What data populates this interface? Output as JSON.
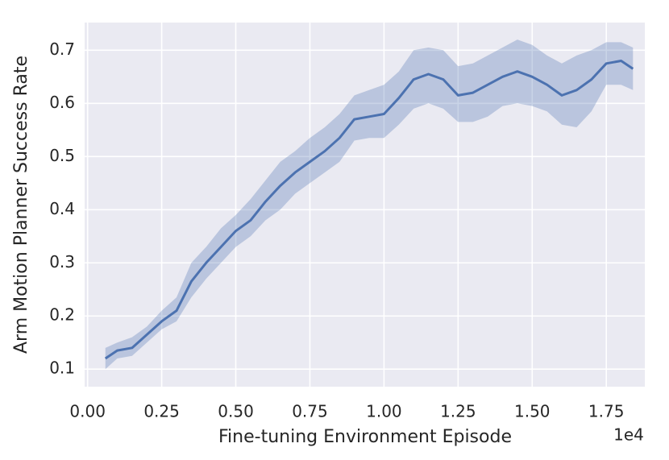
{
  "chart_data": {
    "type": "line",
    "xlabel": "Fine-tuning Environment Episode",
    "ylabel": "Arm Motion Planner Success Rate",
    "x_offset_label": "1e4",
    "x": [
      600,
      1000,
      1500,
      2000,
      2500,
      3000,
      3500,
      4000,
      4500,
      5000,
      5500,
      6000,
      6500,
      7000,
      7500,
      8000,
      8500,
      9000,
      9500,
      10000,
      10500,
      11000,
      11500,
      12000,
      12500,
      13000,
      13500,
      14000,
      14500,
      15000,
      15500,
      16000,
      16500,
      17000,
      17500,
      18000,
      18400
    ],
    "values": [
      0.12,
      0.135,
      0.14,
      0.165,
      0.19,
      0.21,
      0.265,
      0.3,
      0.33,
      0.36,
      0.38,
      0.415,
      0.445,
      0.47,
      0.49,
      0.51,
      0.535,
      0.57,
      0.575,
      0.58,
      0.61,
      0.645,
      0.655,
      0.645,
      0.615,
      0.62,
      0.635,
      0.65,
      0.66,
      0.65,
      0.635,
      0.615,
      0.625,
      0.645,
      0.675,
      0.68,
      0.665
    ],
    "band": {
      "lower": [
        0.1,
        0.12,
        0.125,
        0.15,
        0.175,
        0.19,
        0.235,
        0.27,
        0.3,
        0.33,
        0.35,
        0.38,
        0.4,
        0.43,
        0.45,
        0.47,
        0.49,
        0.53,
        0.535,
        0.535,
        0.56,
        0.59,
        0.6,
        0.59,
        0.565,
        0.565,
        0.575,
        0.595,
        0.6,
        0.595,
        0.585,
        0.56,
        0.555,
        0.585,
        0.635,
        0.635,
        0.625
      ],
      "upper": [
        0.14,
        0.15,
        0.16,
        0.18,
        0.21,
        0.235,
        0.3,
        0.33,
        0.365,
        0.39,
        0.42,
        0.455,
        0.49,
        0.51,
        0.535,
        0.555,
        0.58,
        0.615,
        0.625,
        0.635,
        0.66,
        0.7,
        0.705,
        0.7,
        0.67,
        0.675,
        0.69,
        0.705,
        0.72,
        0.71,
        0.69,
        0.675,
        0.69,
        0.7,
        0.715,
        0.715,
        0.705
      ]
    },
    "color": "#4c72b0",
    "xlim": [
      -100,
      18800
    ],
    "ylim": [
      0.067,
      0.752
    ],
    "xticks": [
      {
        "value": 0,
        "label": "0.00"
      },
      {
        "value": 2500,
        "label": "0.25"
      },
      {
        "value": 5000,
        "label": "0.50"
      },
      {
        "value": 7500,
        "label": "0.75"
      },
      {
        "value": 10000,
        "label": "1.00"
      },
      {
        "value": 12500,
        "label": "1.25"
      },
      {
        "value": 15000,
        "label": "1.50"
      },
      {
        "value": 17500,
        "label": "1.75"
      }
    ],
    "yticks": [
      0.1,
      0.2,
      0.3,
      0.4,
      0.5,
      0.6,
      0.7
    ],
    "grid": true
  }
}
